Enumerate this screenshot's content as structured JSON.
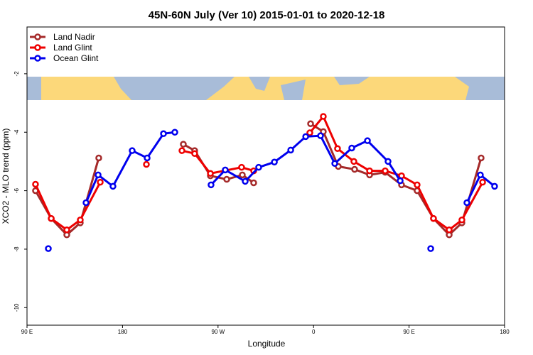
{
  "chart_data": {
    "type": "line",
    "title": "45N-60N July (Ver 10)   2015-01-01 to 2020-12-18",
    "x_label": "Longitude",
    "y_label": "XCO2 - MLO trend (ppm)",
    "xlim": [
      90,
      540
    ],
    "ylim": [
      -10.6,
      -0.4
    ],
    "xticks": [
      {
        "value": 90,
        "label": "90 E"
      },
      {
        "value": 180,
        "label": "180"
      },
      {
        "value": 270,
        "label": "90 W"
      },
      {
        "value": 360,
        "label": "0"
      },
      {
        "value": 450,
        "label": "90 E"
      },
      {
        "value": 540,
        "label": "180"
      }
    ],
    "yticks": [
      -10,
      -8,
      -6,
      -4,
      -2
    ],
    "legend": "top-left",
    "series": [
      {
        "name": "Land Nadir",
        "color": "#a52a2a",
        "x": [
          98,
          112.8,
          127.5,
          140.2,
          157.6,
          null,
          237.3,
          248,
          262.8,
          278.2,
          292.9,
          303.6,
          null,
          357.2,
          369.2,
          383.3,
          398.7,
          412.8,
          427.5,
          442.9,
          457.6,
          473,
          487.8,
          499.8,
          517.9
        ],
        "values": [
          -6.0,
          -6.95,
          -7.51,
          -7.1,
          -4.88,
          null,
          -4.41,
          -4.63,
          -5.49,
          -5.61,
          -5.46,
          -5.73,
          null,
          -3.71,
          -3.98,
          -5.17,
          -5.27,
          -5.46,
          -5.37,
          -5.8,
          -6.0,
          -6.95,
          -7.51,
          -7.1,
          -4.88
        ]
      },
      {
        "name": "Land Glint",
        "color": "#ee0000",
        "x": [
          98,
          112.8,
          127.5,
          140.2,
          159,
          null,
          202.5,
          null,
          236,
          248,
          262.8,
          292.2,
          303.6,
          null,
          356.5,
          369.2,
          382.6,
          398,
          412.8,
          427.5,
          442.9,
          457.6,
          473,
          487.8,
          499.8,
          519.3
        ],
        "values": [
          -5.78,
          -6.95,
          -7.34,
          -7.0,
          -5.71,
          null,
          -5.1,
          null,
          -4.63,
          -4.73,
          -5.41,
          -5.2,
          -5.32,
          null,
          -4.02,
          -3.46,
          -4.56,
          -5.0,
          -5.32,
          -5.32,
          -5.49,
          -5.8,
          -6.95,
          -7.34,
          -7.0,
          -5.71
        ]
      },
      {
        "name": "Ocean Glint",
        "color": "#0000ee",
        "x": [
          110.1,
          null,
          145.6,
          157,
          171,
          189.1,
          203.2,
          218.6,
          229.3,
          null,
          263.4,
          276.8,
          295.6,
          308.3,
          323.1,
          338.5,
          352.6,
          366.6,
          380,
          396,
          410.8,
          430.2,
          441.6,
          null,
          470.4,
          null,
          504.5,
          517.2,
          530.6
        ],
        "values": [
          -7.98,
          null,
          -6.41,
          -5.46,
          -5.85,
          -4.63,
          -4.88,
          -4.05,
          -4.0,
          null,
          -5.8,
          -5.29,
          -5.68,
          -5.2,
          -5.02,
          -4.61,
          -4.15,
          -4.12,
          -5.07,
          -4.54,
          -4.29,
          -5.0,
          -5.66,
          null,
          -7.98,
          null,
          -6.41,
          -5.46,
          -5.85
        ]
      }
    ]
  }
}
